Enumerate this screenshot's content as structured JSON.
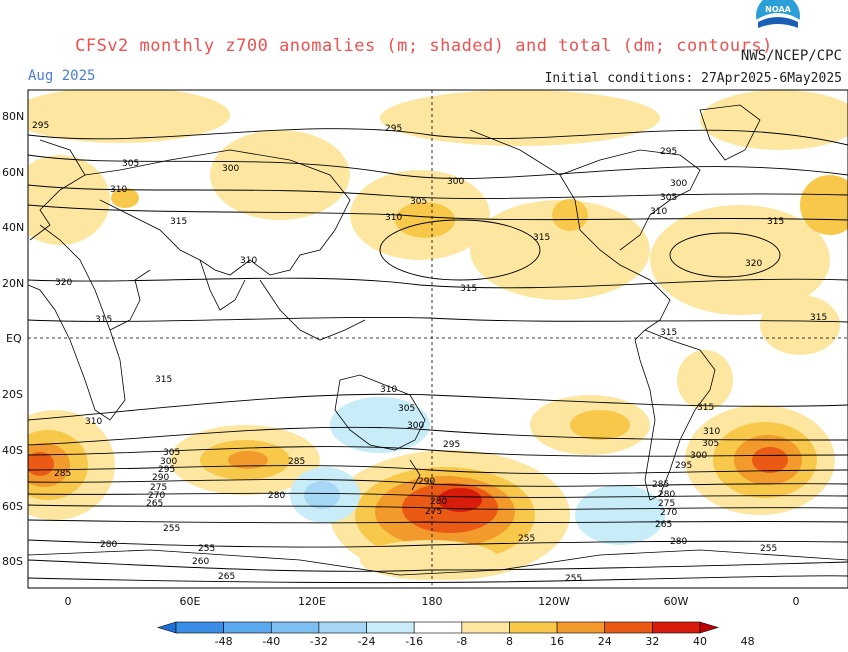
{
  "title": "CFSv2 monthly z700 anomalies (m; shaded) and total (dm; contours)",
  "month": "Aug 2025",
  "agency": "NWS/NCEP/CPC",
  "initial_conditions": "Initial conditions: 27Apr2025-6May2025",
  "logo_text": "NOAA",
  "lat_labels": [
    "80N",
    "60N",
    "40N",
    "20N",
    "EQ",
    "20S",
    "40S",
    "60S",
    "80S"
  ],
  "lon_labels": [
    "0",
    "60E",
    "120E",
    "180",
    "120W",
    "60W",
    "0"
  ],
  "colorbar": {
    "labels": [
      "-48",
      "-40",
      "-32",
      "-24",
      "-16",
      "-8",
      "8",
      "16",
      "24",
      "32",
      "40",
      "48"
    ],
    "colors": [
      "#1e6fd8",
      "#3a8ee6",
      "#5aa8ee",
      "#7cc0f2",
      "#a6d8f6",
      "#c8ecf8",
      "#ffffff",
      "#fde7a0",
      "#f8c84a",
      "#f29a2c",
      "#ea5a14",
      "#d81c0c",
      "#c00000"
    ]
  },
  "contour_labels": [
    "295",
    "300",
    "305",
    "310",
    "315",
    "320",
    "280",
    "285",
    "290",
    "275",
    "270",
    "265",
    "260",
    "255"
  ]
}
